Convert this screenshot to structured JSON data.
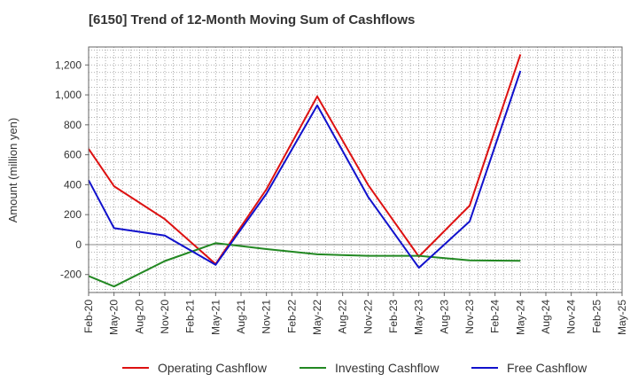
{
  "title": "[6150]  Trend of 12-Month Moving Sum of Cashflows",
  "chart_data": {
    "type": "line",
    "title": "[6150]  Trend of 12-Month Moving Sum of Cashflows",
    "xlabel": "",
    "ylabel": "Amount (million yen)",
    "categories": [
      "Feb-20",
      "May-20",
      "Aug-20",
      "Nov-20",
      "Feb-21",
      "May-21",
      "Aug-21",
      "Nov-21",
      "Feb-22",
      "May-22",
      "Aug-22",
      "Nov-22",
      "Feb-23",
      "May-23",
      "Aug-23",
      "Nov-23",
      "Feb-24",
      "May-24",
      "Aug-24",
      "Nov-24",
      "Feb-25",
      "May-25"
    ],
    "ylim": [
      -320,
      1320
    ],
    "yticks": [
      -200,
      0,
      200,
      400,
      600,
      800,
      1000,
      1200
    ],
    "ytick_labels": [
      "-200",
      "0",
      "200",
      "400",
      "600",
      "800",
      "1,000",
      "1,200"
    ],
    "grid": true,
    "legend_position": "bottom",
    "series": [
      {
        "name": "Operating Cashflow",
        "color": "#dd1111",
        "values": [
          640,
          390,
          null,
          170,
          null,
          -130,
          null,
          370,
          null,
          990,
          null,
          400,
          null,
          -80,
          null,
          260,
          null,
          1270,
          null,
          null,
          null,
          null
        ]
      },
      {
        "name": "Investing Cashflow",
        "color": "#228822",
        "values": [
          -210,
          -280,
          null,
          -110,
          null,
          10,
          null,
          -30,
          null,
          -65,
          null,
          -75,
          null,
          -75,
          null,
          -105,
          null,
          -108,
          null,
          null,
          null,
          null
        ]
      },
      {
        "name": "Free Cashflow",
        "color": "#1111cc",
        "values": [
          430,
          110,
          null,
          60,
          null,
          -135,
          null,
          340,
          null,
          930,
          null,
          320,
          null,
          -155,
          null,
          155,
          null,
          1160,
          null,
          null,
          null,
          null
        ]
      }
    ]
  }
}
